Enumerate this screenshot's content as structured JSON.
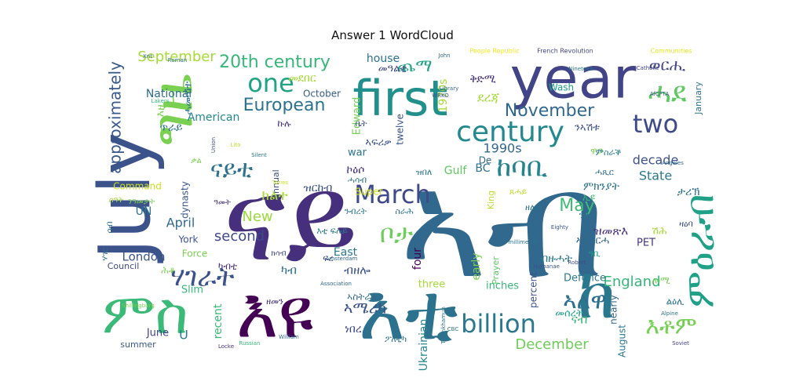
{
  "title": "Answer 1 WordCloud",
  "words": [
    {
      "text": "ናይ",
      "color": "#46307e"
    },
    {
      "text": "ኣብ",
      "color": "#31688e"
    },
    {
      "text": "July",
      "color": "#3b528b"
    },
    {
      "text": "first",
      "color": "#21908d"
    },
    {
      "text": "year",
      "color": "#414487"
    },
    {
      "text": "ግዜ",
      "color": "#7ad151"
    },
    {
      "text": "ምስ",
      "color": "#3aba76"
    },
    {
      "text": "እዩ",
      "color": "#440154"
    },
    {
      "text": "እቲ",
      "color": "#2c728e"
    },
    {
      "text": "ከ",
      "color": "#2a788e"
    },
    {
      "text": "ሓደ",
      "color": "#5ec962"
    },
    {
      "text": "one",
      "color": "#20a386"
    },
    {
      "text": "20th century",
      "color": "#35b779"
    },
    {
      "text": "century",
      "color": "#23898e"
    },
    {
      "text": "two",
      "color": "#3e4a89"
    },
    {
      "text": "November",
      "color": "#31688e"
    },
    {
      "text": "European",
      "color": "#2c728e"
    },
    {
      "text": "March",
      "color": "#3e4a89"
    },
    {
      "text": "ከባቢ",
      "color": "#25848e"
    },
    {
      "text": "ናይቲ",
      "color": "#2c728e"
    },
    {
      "text": "ሃገራት",
      "color": "#3b528b"
    },
    {
      "text": "ቦታ",
      "color": "#6ccd5a"
    },
    {
      "text": "billion",
      "color": "#2a788e"
    },
    {
      "text": "ኣለዋ",
      "color": "#2d708e"
    },
    {
      "text": "እቶም",
      "color": "#75d054"
    },
    {
      "text": "ምዕራብ",
      "color": "#1fa188"
    },
    {
      "text": "ወርሒ",
      "color": "#414487"
    },
    {
      "text": "ጨማ",
      "color": "#20a386"
    },
    {
      "text": "May",
      "color": "#3fbc73"
    },
    {
      "text": "England",
      "color": "#35b779"
    },
    {
      "text": "December",
      "color": "#6ece58"
    },
    {
      "text": "approximately",
      "color": "#38598c"
    },
    {
      "text": "September",
      "color": "#a5db36"
    },
    {
      "text": "second",
      "color": "#3f4889"
    },
    {
      "text": "London",
      "color": "#39568c"
    },
    {
      "text": "New",
      "color": "#9bd93c"
    },
    {
      "text": "April",
      "color": "#31688e"
    },
    {
      "text": "house",
      "color": "#2c728e"
    },
    {
      "text": "National",
      "color": "#2f6c8e"
    },
    {
      "text": "American",
      "color": "#23888e"
    },
    {
      "text": "1970s",
      "color": "#a8db34"
    },
    {
      "text": "October",
      "color": "#365c8d"
    },
    {
      "text": "Edward",
      "color": "#75d054"
    },
    {
      "text": "twelve",
      "color": "#3b528b"
    },
    {
      "text": "war",
      "color": "#2c728e"
    },
    {
      "text": "1990s",
      "color": "#31688e"
    },
    {
      "text": "decade",
      "color": "#3b528b"
    },
    {
      "text": "State",
      "color": "#2a788e"
    },
    {
      "text": "BC",
      "color": "#2c728e"
    },
    {
      "text": "Gulf",
      "color": "#5ec962"
    },
    {
      "text": "East",
      "color": "#2a788e"
    },
    {
      "text": "four",
      "color": "#440154"
    },
    {
      "text": "three",
      "color": "#a5db36"
    },
    {
      "text": "early",
      "color": "#7ad151"
    },
    {
      "text": "inches",
      "color": "#35b779"
    },
    {
      "text": "percent",
      "color": "#3b528b"
    },
    {
      "text": "Defence",
      "color": "#2a788e"
    },
    {
      "text": "nearly",
      "color": "#31688e"
    },
    {
      "text": "August",
      "color": "#2a788e"
    },
    {
      "text": "Ukrainian",
      "color": "#25848e"
    },
    {
      "text": "recent",
      "color": "#3aba76"
    },
    {
      "text": "June",
      "color": "#414487"
    },
    {
      "text": "summer",
      "color": "#38598c"
    },
    {
      "text": "Council",
      "color": "#3e4a89"
    },
    {
      "text": "Slim",
      "color": "#35b779"
    },
    {
      "text": "York",
      "color": "#3b528b"
    },
    {
      "text": "Force",
      "color": "#7ad151"
    },
    {
      "text": "UN",
      "color": "#2c728e"
    },
    {
      "text": "Command",
      "color": "#c8e020"
    },
    {
      "text": "dynasty",
      "color": "#39568c"
    },
    {
      "text": "annual",
      "color": "#3b528b"
    },
    {
      "text": "Super",
      "color": "#d2e21b"
    },
    {
      "text": "King",
      "color": "#bddf26"
    },
    {
      "text": "PET",
      "color": "#46337f"
    },
    {
      "text": "Wash",
      "color": "#1fa188"
    },
    {
      "text": "January",
      "color": "#2c728e"
    },
    {
      "text": "Prayer",
      "color": "#5ec962"
    },
    {
      "text": "De",
      "color": "#31688e"
    },
    {
      "text": "U",
      "color": "#2a788e"
    },
    {
      "text": "French Revolution",
      "color": "#414487"
    },
    {
      "text": "People Republic",
      "color": "#f1e51d"
    },
    {
      "text": "Communities",
      "color": "#e2e418"
    },
    {
      "text": "Catholic",
      "color": "#414487"
    },
    {
      "text": "AfCFTA",
      "color": "#3b528b"
    },
    {
      "text": "Nineteen",
      "color": "#2a788e"
    },
    {
      "text": "Library",
      "color": "#31688e"
    },
    {
      "text": "Roman",
      "color": "#2c728e"
    },
    {
      "text": "Lakers",
      "color": "#35b779"
    },
    {
      "text": "Union",
      "color": "#3b528b"
    },
    {
      "text": "Angeles",
      "color": "#31688e"
    },
    {
      "text": "Eighty",
      "color": "#3b528b"
    },
    {
      "text": "millimetres",
      "color": "#2c728e"
    },
    {
      "text": "Robert",
      "color": "#3e4a89"
    },
    {
      "text": "Amsterdam",
      "color": "#31688e"
    },
    {
      "text": "Humanae",
      "color": "#3b528b"
    },
    {
      "text": "Association",
      "color": "#31688e"
    },
    {
      "text": "Shillingburg",
      "color": "#7ad151"
    },
    {
      "text": "Russian",
      "color": "#35b779"
    },
    {
      "text": "Locke",
      "color": "#46337f"
    },
    {
      "text": "William",
      "color": "#31688e"
    },
    {
      "text": "CBC",
      "color": "#2a788e"
    },
    {
      "text": "Alpine",
      "color": "#2c728e"
    },
    {
      "text": "Soviet",
      "color": "#414487"
    },
    {
      "text": "Silent",
      "color": "#2a788e"
    },
    {
      "text": "John",
      "color": "#31688e"
    },
    {
      "text": "Tories",
      "color": "#c8e020"
    },
    {
      "text": "Xnt",
      "color": "#31688e"
    },
    {
      "text": "Tutankhamun",
      "color": "#2c728e"
    },
    {
      "text": "WRKO",
      "color": "#3b528b"
    },
    {
      "text": "Lito",
      "color": "#bddf26"
    },
    {
      "text": "መደበር",
      "color": "#a5db36"
    },
    {
      "text": "መዓልቲ",
      "color": "#3e4a89"
    },
    {
      "text": "ደረጃ",
      "color": "#a5db36"
    },
    {
      "text": "ቅድሚ",
      "color": "#46337f"
    },
    {
      "text": "ሓሙሽተ",
      "color": "#2c728e"
    },
    {
      "text": "ኮዕሶ",
      "color": "#46337f"
    },
    {
      "text": "ኣፍሪቃ",
      "color": "#3b528b"
    },
    {
      "text": "ንኣሽቱ",
      "color": "#3b528b"
    },
    {
      "text": "ሽሕ",
      "color": "#a5db36"
    },
    {
      "text": "ክልተ",
      "color": "#a8db34"
    },
    {
      "text": "ዝርከብ",
      "color": "#3b528b"
    },
    {
      "text": "ኣሜሪካ",
      "color": "#3b528b"
    },
    {
      "text": "እዚ",
      "color": "#7ad151"
    },
    {
      "text": "ምክንያት",
      "color": "#2c728e"
    },
    {
      "text": "ብዙሓት",
      "color": "#2a788e"
    },
    {
      "text": "ኣሰራርሓ",
      "color": "#31688e"
    },
    {
      "text": "ዝመጽእ",
      "color": "#46337f"
    },
    {
      "text": "ኣስትራልያ",
      "color": "#31688e"
    },
    {
      "text": "ጥራይ",
      "color": "#2c728e"
    },
    {
      "text": "ሎሚ",
      "color": "#75d054"
    },
    {
      "text": "ካብ",
      "color": "#2c728e"
    },
    {
      "text": "ነበረ",
      "color": "#3e4a89"
    },
    {
      "text": "ናብ",
      "color": "#3aba76"
    },
    {
      "text": "ብዘሎ",
      "color": "#3b528b"
    },
    {
      "text": "ዋጋ",
      "color": "#7ad151"
    },
    {
      "text": "ኩሉ",
      "color": "#46337f"
    },
    {
      "text": "ዓመት",
      "color": "#46337f"
    },
    {
      "text": "እቲ ፍሉይ",
      "color": "#2a788e"
    },
    {
      "text": "ንብረት",
      "color": "#2a788e"
    },
    {
      "text": "መሰረት",
      "color": "#1fa188"
    },
    {
      "text": "ካብቲ",
      "color": "#46337f"
    },
    {
      "text": "ፖለቲካ",
      "color": "#2c728e"
    },
    {
      "text": "ሕቶ",
      "color": "#7ad151"
    },
    {
      "text": "ሃገር",
      "color": "#31688e"
    },
    {
      "text": "ሰብ",
      "color": "#2a788e"
    },
    {
      "text": "ቤት",
      "color": "#3e4a89"
    },
    {
      "text": "ሰዓት",
      "color": "#a5db36"
    },
    {
      "text": "ቃል",
      "color": "#7ad151"
    },
    {
      "text": "ስራሕ",
      "color": "#2c728e"
    },
    {
      "text": "ዘመን",
      "color": "#46337f"
    },
    {
      "text": "ልዕሊ",
      "color": "#2c728e"
    },
    {
      "text": "ምስራቕ",
      "color": "#2a788e"
    },
    {
      "text": "ታሪኽ",
      "color": "#2c728e"
    },
    {
      "text": "ፍረ",
      "color": "#3e4a89"
    },
    {
      "text": "ዓቢ",
      "color": "#1fa188"
    },
    {
      "text": "ንሕና",
      "color": "#2c728e"
    },
    {
      "text": "ዛዕባ",
      "color": "#3e4a89"
    },
    {
      "text": "ጸሓይ",
      "color": "#bddf26"
    },
    {
      "text": "ሓጺር",
      "color": "#31688e"
    },
    {
      "text": "ኢዩ",
      "color": "#3aba76"
    },
    {
      "text": "ዝበለ",
      "color": "#2a788e"
    },
    {
      "text": "ክሳብ",
      "color": "#3e4a89"
    },
    {
      "text": "ንዓመታት",
      "color": "#7ad151"
    },
    {
      "text": "ሓሳብ",
      "color": "#2c728e"
    },
    {
      "text": "ዘለዉ",
      "color": "#2c728e"
    }
  ]
}
